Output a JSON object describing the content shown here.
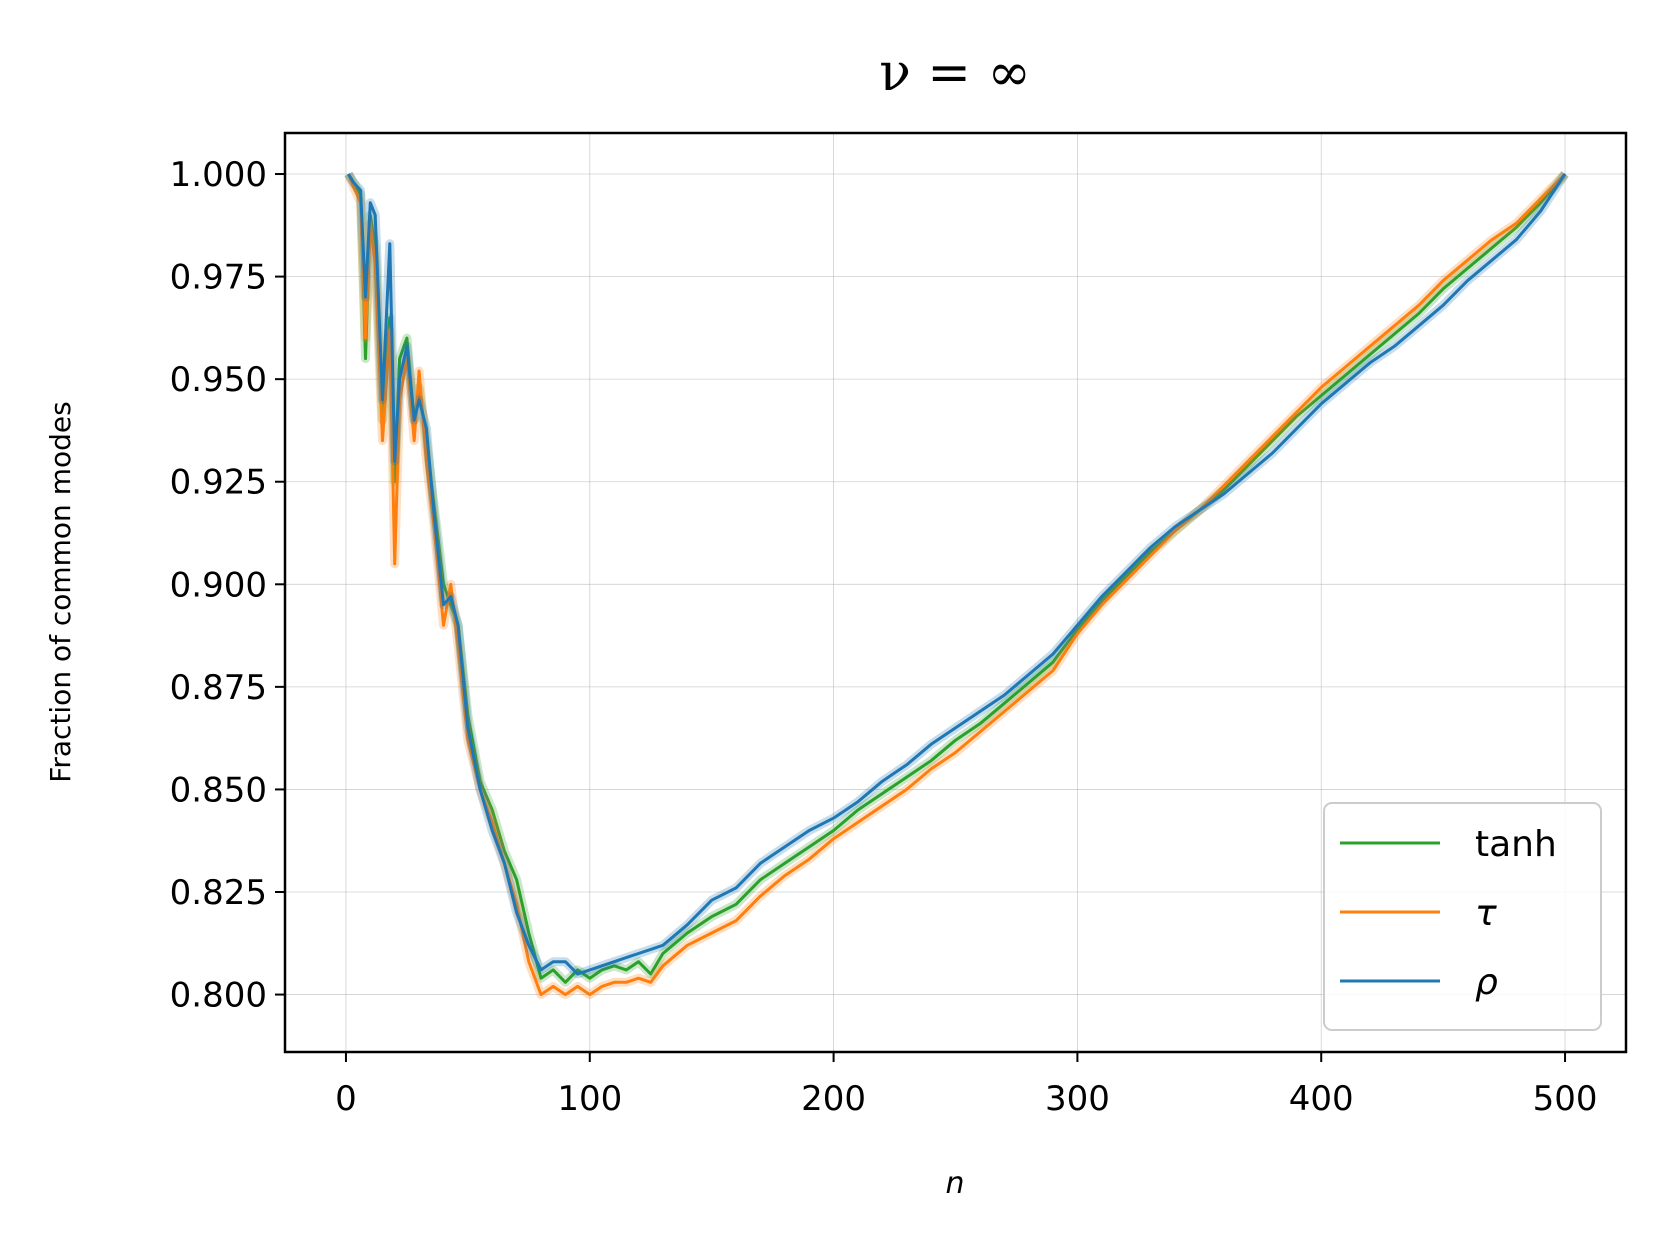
{
  "chart_data": {
    "type": "line",
    "title": "ν = ∞",
    "xlabel": "n",
    "ylabel": "Fraction of common modes",
    "xlim": [
      -25,
      525
    ],
    "ylim": [
      0.786,
      1.01
    ],
    "xticks": [
      0,
      100,
      200,
      300,
      400,
      500
    ],
    "xtick_labels": [
      "0",
      "100",
      "200",
      "300",
      "400",
      "500"
    ],
    "yticks": [
      0.8,
      0.825,
      0.85,
      0.875,
      0.9,
      0.925,
      0.95,
      0.975,
      1.0
    ],
    "ytick_labels": [
      "0.800",
      "0.825",
      "0.850",
      "0.875",
      "0.900",
      "0.925",
      "0.950",
      "0.975",
      "1.000"
    ],
    "grid": true,
    "legend_position": "bottom-right",
    "series": [
      {
        "name": "tanh",
        "color": "#2ca02c",
        "italic": false,
        "x": [
          1,
          3,
          6,
          8,
          10,
          12,
          15,
          18,
          20,
          22,
          25,
          28,
          30,
          33,
          36,
          40,
          43,
          46,
          50,
          55,
          60,
          65,
          70,
          75,
          80,
          85,
          90,
          95,
          100,
          105,
          110,
          115,
          120,
          125,
          130,
          140,
          150,
          160,
          170,
          180,
          190,
          200,
          210,
          220,
          230,
          240,
          250,
          260,
          270,
          280,
          290,
          300,
          310,
          320,
          330,
          340,
          350,
          360,
          370,
          380,
          390,
          400,
          410,
          420,
          430,
          440,
          450,
          460,
          470,
          480,
          490,
          500
        ],
        "y": [
          1.0,
          0.998,
          0.995,
          0.955,
          0.99,
          0.982,
          0.94,
          0.965,
          0.925,
          0.955,
          0.96,
          0.94,
          0.948,
          0.935,
          0.92,
          0.9,
          0.895,
          0.89,
          0.868,
          0.852,
          0.845,
          0.835,
          0.828,
          0.815,
          0.804,
          0.806,
          0.803,
          0.806,
          0.804,
          0.806,
          0.807,
          0.806,
          0.808,
          0.805,
          0.81,
          0.815,
          0.819,
          0.822,
          0.828,
          0.832,
          0.836,
          0.84,
          0.845,
          0.849,
          0.853,
          0.857,
          0.862,
          0.866,
          0.871,
          0.876,
          0.881,
          0.889,
          0.896,
          0.902,
          0.908,
          0.913,
          0.918,
          0.923,
          0.929,
          0.935,
          0.941,
          0.946,
          0.951,
          0.956,
          0.961,
          0.966,
          0.972,
          0.977,
          0.982,
          0.987,
          0.993,
          1.0
        ]
      },
      {
        "name": "τ",
        "color": "#ff7f0e",
        "italic": true,
        "x": [
          1,
          3,
          6,
          8,
          10,
          12,
          15,
          18,
          20,
          22,
          25,
          28,
          30,
          33,
          36,
          40,
          43,
          46,
          50,
          55,
          60,
          65,
          70,
          75,
          80,
          85,
          90,
          95,
          100,
          105,
          110,
          115,
          120,
          125,
          130,
          140,
          150,
          160,
          170,
          180,
          190,
          200,
          210,
          220,
          230,
          240,
          250,
          260,
          270,
          280,
          290,
          300,
          310,
          320,
          330,
          340,
          350,
          360,
          370,
          380,
          390,
          400,
          410,
          420,
          430,
          440,
          450,
          460,
          470,
          480,
          490,
          500
        ],
        "y": [
          1.0,
          0.997,
          0.993,
          0.96,
          0.988,
          0.978,
          0.935,
          0.962,
          0.905,
          0.945,
          0.955,
          0.935,
          0.952,
          0.93,
          0.915,
          0.89,
          0.9,
          0.885,
          0.862,
          0.85,
          0.842,
          0.832,
          0.822,
          0.808,
          0.8,
          0.802,
          0.8,
          0.802,
          0.8,
          0.802,
          0.803,
          0.803,
          0.804,
          0.803,
          0.807,
          0.812,
          0.815,
          0.818,
          0.824,
          0.829,
          0.833,
          0.838,
          0.842,
          0.846,
          0.85,
          0.855,
          0.859,
          0.864,
          0.869,
          0.874,
          0.879,
          0.888,
          0.895,
          0.901,
          0.907,
          0.913,
          0.918,
          0.924,
          0.93,
          0.936,
          0.942,
          0.948,
          0.953,
          0.958,
          0.963,
          0.968,
          0.974,
          0.979,
          0.984,
          0.988,
          0.994,
          1.0
        ]
      },
      {
        "name": "ρ",
        "color": "#1f77b4",
        "italic": true,
        "x": [
          1,
          3,
          6,
          8,
          10,
          12,
          15,
          18,
          20,
          22,
          25,
          28,
          30,
          33,
          36,
          40,
          43,
          46,
          50,
          55,
          60,
          65,
          70,
          75,
          80,
          85,
          90,
          95,
          100,
          105,
          110,
          115,
          120,
          125,
          130,
          140,
          150,
          160,
          170,
          180,
          190,
          200,
          210,
          220,
          230,
          240,
          250,
          260,
          270,
          280,
          290,
          300,
          310,
          320,
          330,
          340,
          350,
          360,
          370,
          380,
          390,
          400,
          410,
          420,
          430,
          440,
          450,
          460,
          470,
          480,
          490,
          500
        ],
        "y": [
          1.0,
          0.998,
          0.996,
          0.97,
          0.993,
          0.99,
          0.945,
          0.983,
          0.93,
          0.95,
          0.958,
          0.94,
          0.945,
          0.938,
          0.918,
          0.895,
          0.897,
          0.89,
          0.865,
          0.85,
          0.84,
          0.832,
          0.82,
          0.812,
          0.806,
          0.808,
          0.808,
          0.805,
          0.806,
          0.807,
          0.808,
          0.809,
          0.81,
          0.811,
          0.812,
          0.817,
          0.823,
          0.826,
          0.832,
          0.836,
          0.84,
          0.843,
          0.847,
          0.852,
          0.856,
          0.861,
          0.865,
          0.869,
          0.873,
          0.878,
          0.883,
          0.89,
          0.897,
          0.903,
          0.909,
          0.914,
          0.918,
          0.922,
          0.927,
          0.932,
          0.938,
          0.944,
          0.949,
          0.954,
          0.958,
          0.963,
          0.968,
          0.974,
          0.979,
          0.984,
          0.991,
          1.0
        ]
      }
    ]
  }
}
